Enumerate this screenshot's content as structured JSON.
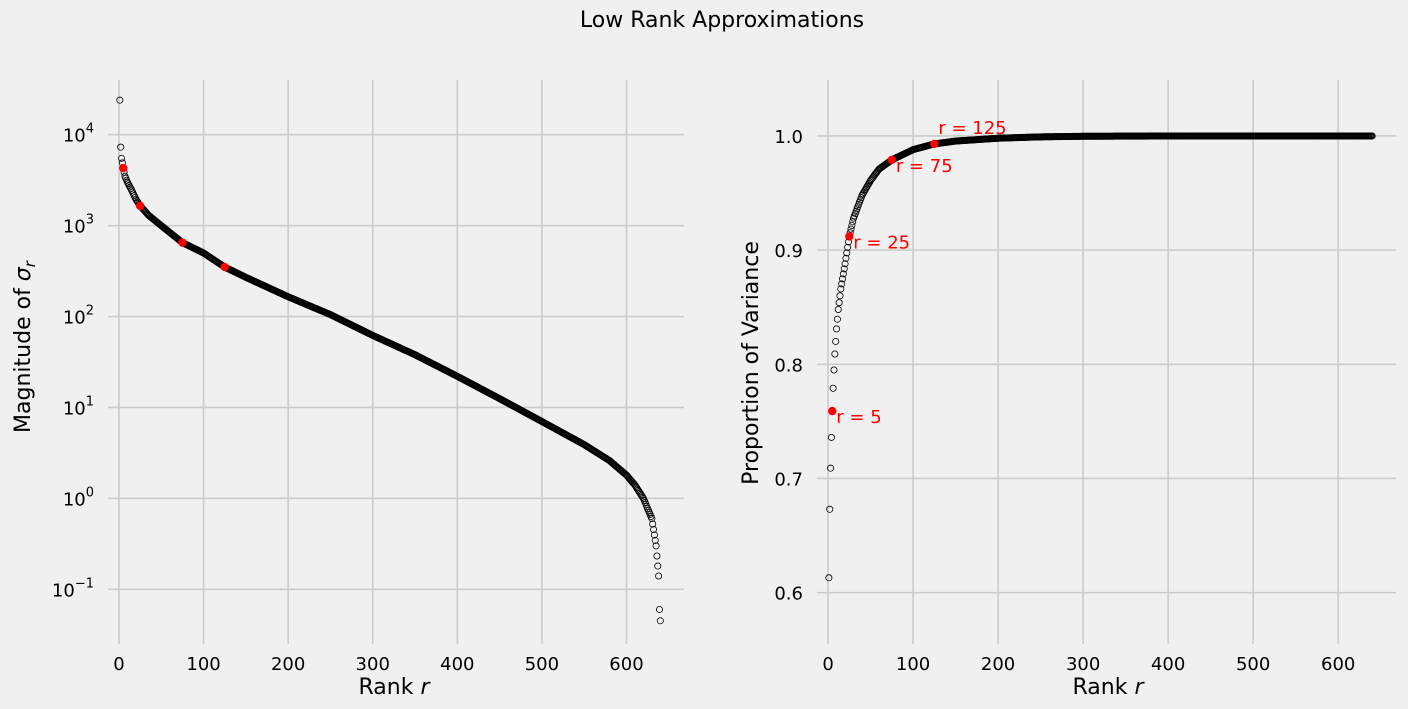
{
  "suptitle": "Low Rank Approximations",
  "colors": {
    "background": "#f0f0f0",
    "grid": "#cbcbcb",
    "marker_edge": "#000000",
    "highlight": "#ff0000"
  },
  "chart_data": [
    {
      "type": "scatter",
      "name": "singular-values",
      "yscale": "log",
      "xlabel": "Rank r",
      "ylabel": "Magnitude of σ_r",
      "ylabel_prefix": "Magnitude of ",
      "ylabel_symbol": "σ",
      "ylabel_sub": "r",
      "xlim": [
        -13,
        668
      ],
      "ylim": [
        0.025,
        40000
      ],
      "xticks": [
        0,
        100,
        200,
        300,
        400,
        500,
        600
      ],
      "xtick_labels": [
        "0",
        "100",
        "200",
        "300",
        "400",
        "500",
        "600"
      ],
      "yticks": [
        0.1,
        1,
        10,
        100,
        1000,
        10000
      ],
      "ytick_bases": [
        "10",
        "10",
        "10",
        "10",
        "10",
        "10"
      ],
      "ytick_exps": [
        "−1",
        "0",
        "1",
        "2",
        "3",
        "4"
      ],
      "n_points": 640,
      "x_first": 1,
      "anchors": [
        [
          1,
          24000
        ],
        [
          2,
          7300
        ],
        [
          3,
          5500
        ],
        [
          4,
          4900
        ],
        [
          5,
          4300
        ],
        [
          7,
          3500
        ],
        [
          10,
          3000
        ],
        [
          15,
          2450
        ],
        [
          20,
          1950
        ],
        [
          25,
          1650
        ],
        [
          35,
          1300
        ],
        [
          50,
          1000
        ],
        [
          75,
          650
        ],
        [
          100,
          500
        ],
        [
          125,
          350
        ],
        [
          150,
          270
        ],
        [
          200,
          165
        ],
        [
          250,
          105
        ],
        [
          300,
          62
        ],
        [
          350,
          38
        ],
        [
          400,
          22
        ],
        [
          450,
          12.5
        ],
        [
          500,
          7
        ],
        [
          550,
          3.9
        ],
        [
          580,
          2.6
        ],
        [
          600,
          1.8
        ],
        [
          610,
          1.4
        ],
        [
          620,
          1.0
        ],
        [
          630,
          0.6
        ],
        [
          635,
          0.3
        ],
        [
          637,
          0.18
        ],
        [
          638,
          0.14
        ],
        [
          639,
          0.06
        ],
        [
          640,
          0.045
        ]
      ],
      "highlight_points": [
        {
          "r": 5,
          "y": 4300
        },
        {
          "r": 25,
          "y": 1650
        },
        {
          "r": 75,
          "y": 650
        },
        {
          "r": 125,
          "y": 350
        }
      ]
    },
    {
      "type": "scatter",
      "name": "proportion-of-variance",
      "yscale": "linear",
      "xlabel": "Rank r",
      "ylabel": "Proportion of Variance",
      "xlim": [
        -13,
        668
      ],
      "ylim": [
        0.555,
        1.049
      ],
      "xticks": [
        0,
        100,
        200,
        300,
        400,
        500,
        600
      ],
      "xtick_labels": [
        "0",
        "100",
        "200",
        "300",
        "400",
        "500",
        "600"
      ],
      "yticks": [
        0.6,
        0.7,
        0.8,
        0.9,
        1.0
      ],
      "ytick_labels": [
        "0.6",
        "0.7",
        "0.8",
        "0.9",
        "1.0"
      ],
      "n_points": 640,
      "x_first": 1,
      "anchors": [
        [
          1,
          0.613
        ],
        [
          2,
          0.673
        ],
        [
          3,
          0.709
        ],
        [
          4,
          0.736
        ],
        [
          5,
          0.759
        ],
        [
          6,
          0.779
        ],
        [
          7,
          0.795
        ],
        [
          8,
          0.809
        ],
        [
          9,
          0.82
        ],
        [
          10,
          0.831
        ],
        [
          12,
          0.848
        ],
        [
          15,
          0.866
        ],
        [
          20,
          0.888
        ],
        [
          25,
          0.912
        ],
        [
          30,
          0.928
        ],
        [
          40,
          0.948
        ],
        [
          50,
          0.961
        ],
        [
          60,
          0.971
        ],
        [
          75,
          0.979
        ],
        [
          100,
          0.988
        ],
        [
          125,
          0.993
        ],
        [
          150,
          0.9955
        ],
        [
          200,
          0.998
        ],
        [
          250,
          0.9992
        ],
        [
          300,
          0.9997
        ],
        [
          400,
          0.99995
        ],
        [
          640,
          1.0
        ]
      ],
      "annotations": [
        {
          "r": 5,
          "y": 0.759,
          "label": "r = 5"
        },
        {
          "r": 25,
          "y": 0.912,
          "label": "r = 25"
        },
        {
          "r": 75,
          "y": 0.979,
          "label": "r = 75"
        },
        {
          "r": 125,
          "y": 0.993,
          "label": "r = 125"
        }
      ]
    }
  ]
}
